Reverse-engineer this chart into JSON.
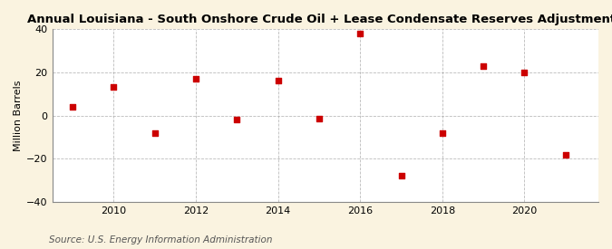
{
  "title": "Annual Louisiana - South Onshore Crude Oil + Lease Condensate Reserves Adjustments",
  "ylabel": "Million Barrels",
  "source": "Source: U.S. Energy Information Administration",
  "years": [
    2009,
    2010,
    2011,
    2012,
    2013,
    2014,
    2015,
    2016,
    2017,
    2018,
    2019,
    2020,
    2021
  ],
  "values": [
    4.0,
    13.0,
    -8.0,
    17.0,
    -2.0,
    16.0,
    -1.5,
    38.0,
    -28.0,
    -8.0,
    23.0,
    20.0,
    -18.0
  ],
  "marker_color": "#cc0000",
  "marker_size": 5,
  "figure_bg": "#faf3e0",
  "plot_bg": "#ffffff",
  "grid_color": "#aaaaaa",
  "ylim": [
    -40,
    40
  ],
  "yticks": [
    -40,
    -20,
    0,
    20,
    40
  ],
  "xlim": [
    2008.5,
    2021.8
  ],
  "xticks": [
    2010,
    2012,
    2014,
    2016,
    2018,
    2020
  ],
  "title_fontsize": 9.5,
  "tick_fontsize": 8,
  "ylabel_fontsize": 8,
  "source_fontsize": 7.5
}
